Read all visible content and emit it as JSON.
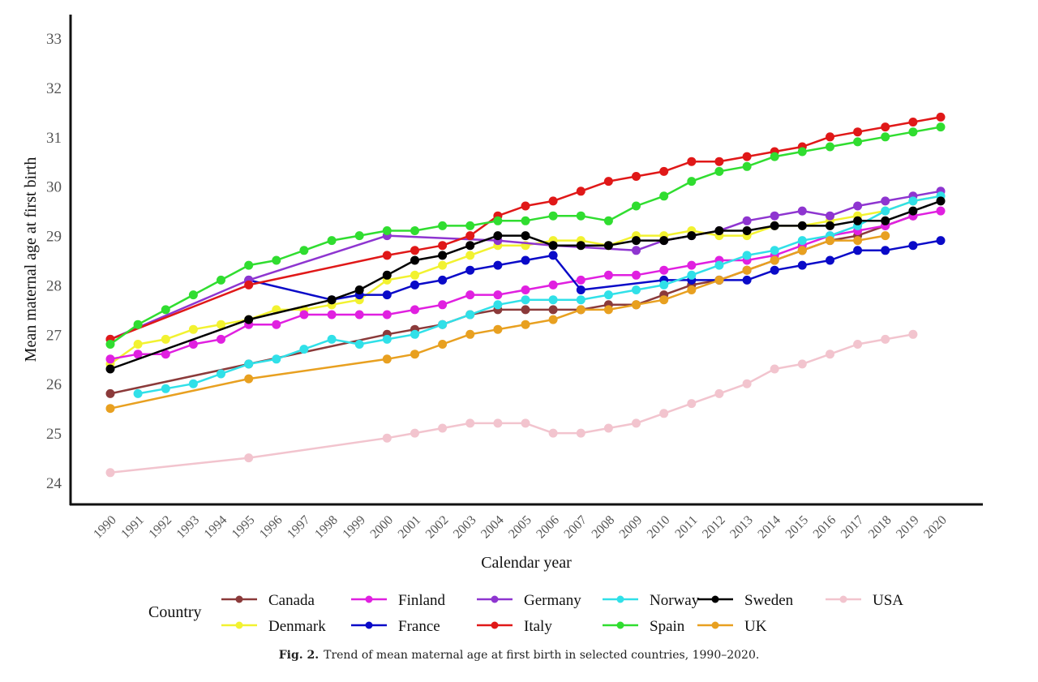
{
  "chart_data": {
    "type": "line",
    "title": "",
    "xlabel": "Calendar year",
    "ylabel": "Mean maternal age at first birth",
    "ylim": [
      24,
      33
    ],
    "xlim": [
      1990,
      2020
    ],
    "yticks": [
      24,
      25,
      26,
      27,
      28,
      29,
      30,
      31,
      32,
      33
    ],
    "x": [
      1990,
      1991,
      1992,
      1993,
      1994,
      1995,
      1996,
      1997,
      1998,
      1999,
      2000,
      2001,
      2002,
      2003,
      2004,
      2005,
      2006,
      2007,
      2008,
      2009,
      2010,
      2011,
      2012,
      2013,
      2014,
      2015,
      2016,
      2017,
      2018,
      2019,
      2020
    ],
    "grid": false,
    "legend_title": "Country",
    "legend_position": "bottom",
    "series": [
      {
        "name": "Canada",
        "color": "#8B3A3A",
        "points": [
          [
            1990,
            25.8
          ],
          [
            1995,
            26.4
          ],
          [
            2000,
            27.0
          ],
          [
            2001,
            27.1
          ],
          [
            2002,
            27.2
          ],
          [
            2003,
            27.4
          ],
          [
            2004,
            27.5
          ],
          [
            2005,
            27.5
          ],
          [
            2006,
            27.5
          ],
          [
            2007,
            27.5
          ],
          [
            2008,
            27.6
          ],
          [
            2009,
            27.6
          ],
          [
            2010,
            27.8
          ],
          [
            2011,
            28.0
          ],
          [
            2012,
            28.1
          ],
          [
            2013,
            28.3
          ],
          [
            2014,
            28.5
          ],
          [
            2015,
            28.7
          ],
          [
            2016,
            28.9
          ],
          [
            2017,
            29.0
          ],
          [
            2018,
            29.2
          ],
          [
            2019,
            29.4
          ]
        ]
      },
      {
        "name": "Denmark",
        "color": "#F2F230",
        "points": [
          [
            1990,
            26.4
          ],
          [
            1991,
            26.8
          ],
          [
            1992,
            26.9
          ],
          [
            1993,
            27.1
          ],
          [
            1994,
            27.2
          ],
          [
            1995,
            27.3
          ],
          [
            1996,
            27.5
          ],
          [
            1997,
            27.5
          ],
          [
            1998,
            27.6
          ],
          [
            1999,
            27.7
          ],
          [
            2000,
            28.1
          ],
          [
            2001,
            28.2
          ],
          [
            2002,
            28.4
          ],
          [
            2003,
            28.6
          ],
          [
            2004,
            28.8
          ],
          [
            2005,
            28.8
          ],
          [
            2006,
            28.9
          ],
          [
            2007,
            28.9
          ],
          [
            2008,
            28.8
          ],
          [
            2009,
            29.0
          ],
          [
            2010,
            29.0
          ],
          [
            2011,
            29.1
          ],
          [
            2012,
            29.0
          ],
          [
            2013,
            29.0
          ],
          [
            2014,
            29.2
          ],
          [
            2015,
            29.2
          ],
          [
            2016,
            29.3
          ],
          [
            2017,
            29.4
          ],
          [
            2018,
            29.5
          ],
          [
            2019,
            29.7
          ],
          [
            2020,
            29.8
          ]
        ]
      },
      {
        "name": "Finland",
        "color": "#E020E0",
        "points": [
          [
            1990,
            26.5
          ],
          [
            1991,
            26.6
          ],
          [
            1992,
            26.6
          ],
          [
            1993,
            26.8
          ],
          [
            1994,
            26.9
          ],
          [
            1995,
            27.2
          ],
          [
            1996,
            27.2
          ],
          [
            1997,
            27.4
          ],
          [
            1998,
            27.4
          ],
          [
            1999,
            27.4
          ],
          [
            2000,
            27.4
          ],
          [
            2001,
            27.5
          ],
          [
            2002,
            27.6
          ],
          [
            2003,
            27.8
          ],
          [
            2004,
            27.8
          ],
          [
            2005,
            27.9
          ],
          [
            2006,
            28.0
          ],
          [
            2007,
            28.1
          ],
          [
            2008,
            28.2
          ],
          [
            2009,
            28.2
          ],
          [
            2010,
            28.3
          ],
          [
            2011,
            28.4
          ],
          [
            2012,
            28.5
          ],
          [
            2013,
            28.5
          ],
          [
            2014,
            28.6
          ],
          [
            2015,
            28.8
          ],
          [
            2016,
            29.0
          ],
          [
            2017,
            29.1
          ],
          [
            2018,
            29.2
          ],
          [
            2019,
            29.4
          ],
          [
            2020,
            29.5
          ]
        ]
      },
      {
        "name": "France",
        "color": "#0A0AC8",
        "points": [
          [
            1995,
            28.1
          ],
          [
            1998,
            27.7
          ],
          [
            1999,
            27.8
          ],
          [
            2000,
            27.8
          ],
          [
            2001,
            28.0
          ],
          [
            2002,
            28.1
          ],
          [
            2003,
            28.3
          ],
          [
            2004,
            28.4
          ],
          [
            2005,
            28.5
          ],
          [
            2006,
            28.6
          ],
          [
            2007,
            27.9
          ],
          [
            2010,
            28.1
          ],
          [
            2011,
            28.1
          ],
          [
            2012,
            28.1
          ],
          [
            2013,
            28.1
          ],
          [
            2014,
            28.3
          ],
          [
            2015,
            28.4
          ],
          [
            2016,
            28.5
          ],
          [
            2017,
            28.7
          ],
          [
            2018,
            28.7
          ],
          [
            2019,
            28.8
          ],
          [
            2020,
            28.9
          ]
        ]
      },
      {
        "name": "Germany",
        "color": "#8E35D0",
        "points": [
          [
            1990,
            26.9
          ],
          [
            1995,
            28.1
          ],
          [
            2000,
            29.0
          ],
          [
            2004,
            28.9
          ],
          [
            2006,
            28.8
          ],
          [
            2009,
            28.7
          ],
          [
            2010,
            28.9
          ],
          [
            2011,
            29.0
          ],
          [
            2012,
            29.1
          ],
          [
            2013,
            29.3
          ],
          [
            2014,
            29.4
          ],
          [
            2015,
            29.5
          ],
          [
            2016,
            29.4
          ],
          [
            2017,
            29.6
          ],
          [
            2018,
            29.7
          ],
          [
            2019,
            29.8
          ],
          [
            2020,
            29.9
          ]
        ]
      },
      {
        "name": "Italy",
        "color": "#E01818",
        "points": [
          [
            1990,
            26.9
          ],
          [
            1995,
            28.0
          ],
          [
            2000,
            28.6
          ],
          [
            2001,
            28.7
          ],
          [
            2002,
            28.8
          ],
          [
            2003,
            29.0
          ],
          [
            2004,
            29.4
          ],
          [
            2005,
            29.6
          ],
          [
            2006,
            29.7
          ],
          [
            2007,
            29.9
          ],
          [
            2008,
            30.1
          ],
          [
            2009,
            30.2
          ],
          [
            2010,
            30.3
          ],
          [
            2011,
            30.5
          ],
          [
            2012,
            30.5
          ],
          [
            2013,
            30.6
          ],
          [
            2014,
            30.7
          ],
          [
            2015,
            30.8
          ],
          [
            2016,
            31.0
          ],
          [
            2017,
            31.1
          ],
          [
            2018,
            31.2
          ],
          [
            2019,
            31.3
          ],
          [
            2020,
            31.4
          ]
        ]
      },
      {
        "name": "Norway",
        "color": "#30E0E8",
        "points": [
          [
            1991,
            25.8
          ],
          [
            1992,
            25.9
          ],
          [
            1993,
            26.0
          ],
          [
            1994,
            26.2
          ],
          [
            1995,
            26.4
          ],
          [
            1996,
            26.5
          ],
          [
            1997,
            26.7
          ],
          [
            1998,
            26.9
          ],
          [
            1999,
            26.8
          ],
          [
            2000,
            26.9
          ],
          [
            2001,
            27.0
          ],
          [
            2002,
            27.2
          ],
          [
            2003,
            27.4
          ],
          [
            2004,
            27.6
          ],
          [
            2005,
            27.7
          ],
          [
            2006,
            27.7
          ],
          [
            2007,
            27.7
          ],
          [
            2008,
            27.8
          ],
          [
            2009,
            27.9
          ],
          [
            2010,
            28.0
          ],
          [
            2011,
            28.2
          ],
          [
            2012,
            28.4
          ],
          [
            2013,
            28.6
          ],
          [
            2014,
            28.7
          ],
          [
            2015,
            28.9
          ],
          [
            2016,
            29.0
          ],
          [
            2017,
            29.2
          ],
          [
            2018,
            29.5
          ],
          [
            2019,
            29.7
          ],
          [
            2020,
            29.8
          ]
        ]
      },
      {
        "name": "Spain",
        "color": "#30DD30",
        "points": [
          [
            1990,
            26.8
          ],
          [
            1991,
            27.2
          ],
          [
            1992,
            27.5
          ],
          [
            1993,
            27.8
          ],
          [
            1994,
            28.1
          ],
          [
            1995,
            28.4
          ],
          [
            1996,
            28.5
          ],
          [
            1997,
            28.7
          ],
          [
            1998,
            28.9
          ],
          [
            1999,
            29.0
          ],
          [
            2000,
            29.1
          ],
          [
            2001,
            29.1
          ],
          [
            2002,
            29.2
          ],
          [
            2003,
            29.2
          ],
          [
            2004,
            29.3
          ],
          [
            2005,
            29.3
          ],
          [
            2006,
            29.4
          ],
          [
            2007,
            29.4
          ],
          [
            2008,
            29.3
          ],
          [
            2009,
            29.6
          ],
          [
            2010,
            29.8
          ],
          [
            2011,
            30.1
          ],
          [
            2012,
            30.3
          ],
          [
            2013,
            30.4
          ],
          [
            2014,
            30.6
          ],
          [
            2015,
            30.7
          ],
          [
            2016,
            30.8
          ],
          [
            2017,
            30.9
          ],
          [
            2018,
            31.0
          ],
          [
            2019,
            31.1
          ],
          [
            2020,
            31.2
          ]
        ]
      },
      {
        "name": "Sweden",
        "color": "#000000",
        "points": [
          [
            1990,
            26.3
          ],
          [
            1995,
            27.3
          ],
          [
            1998,
            27.7
          ],
          [
            1999,
            27.9
          ],
          [
            2000,
            28.2
          ],
          [
            2001,
            28.5
          ],
          [
            2002,
            28.6
          ],
          [
            2003,
            28.8
          ],
          [
            2004,
            29.0
          ],
          [
            2005,
            29.0
          ],
          [
            2006,
            28.8
          ],
          [
            2007,
            28.8
          ],
          [
            2008,
            28.8
          ],
          [
            2009,
            28.9
          ],
          [
            2010,
            28.9
          ],
          [
            2011,
            29.0
          ],
          [
            2012,
            29.1
          ],
          [
            2013,
            29.1
          ],
          [
            2014,
            29.2
          ],
          [
            2015,
            29.2
          ],
          [
            2016,
            29.2
          ],
          [
            2017,
            29.3
          ],
          [
            2018,
            29.3
          ],
          [
            2019,
            29.5
          ],
          [
            2020,
            29.7
          ]
        ]
      },
      {
        "name": "UK",
        "color": "#E8A020",
        "points": [
          [
            1990,
            25.5
          ],
          [
            1995,
            26.1
          ],
          [
            2000,
            26.5
          ],
          [
            2001,
            26.6
          ],
          [
            2002,
            26.8
          ],
          [
            2003,
            27.0
          ],
          [
            2004,
            27.1
          ],
          [
            2005,
            27.2
          ],
          [
            2006,
            27.3
          ],
          [
            2007,
            27.5
          ],
          [
            2008,
            27.5
          ],
          [
            2009,
            27.6
          ],
          [
            2010,
            27.7
          ],
          [
            2011,
            27.9
          ],
          [
            2012,
            28.1
          ],
          [
            2013,
            28.3
          ],
          [
            2014,
            28.5
          ],
          [
            2015,
            28.7
          ],
          [
            2016,
            28.9
          ],
          [
            2017,
            28.9
          ],
          [
            2018,
            29.0
          ]
        ]
      },
      {
        "name": "USA",
        "color": "#F2C4CE",
        "points": [
          [
            1990,
            24.2
          ],
          [
            1995,
            24.5
          ],
          [
            2000,
            24.9
          ],
          [
            2001,
            25.0
          ],
          [
            2002,
            25.1
          ],
          [
            2003,
            25.2
          ],
          [
            2004,
            25.2
          ],
          [
            2005,
            25.2
          ],
          [
            2006,
            25.0
          ],
          [
            2007,
            25.0
          ],
          [
            2008,
            25.1
          ],
          [
            2009,
            25.2
          ],
          [
            2010,
            25.4
          ],
          [
            2011,
            25.6
          ],
          [
            2012,
            25.8
          ],
          [
            2013,
            26.0
          ],
          [
            2014,
            26.3
          ],
          [
            2015,
            26.4
          ],
          [
            2016,
            26.6
          ],
          [
            2017,
            26.8
          ],
          [
            2018,
            26.9
          ],
          [
            2019,
            27.0
          ]
        ]
      }
    ],
    "legend_order": [
      [
        "Canada",
        "Finland",
        "Germany",
        "Norway",
        "Sweden",
        "USA"
      ],
      [
        "Denmark",
        "France",
        "Italy",
        "Spain",
        "UK"
      ]
    ]
  },
  "caption": {
    "label": "Fig. 2.",
    "text": "Trend of mean maternal age at first birth in selected countries, 1990–2020."
  }
}
